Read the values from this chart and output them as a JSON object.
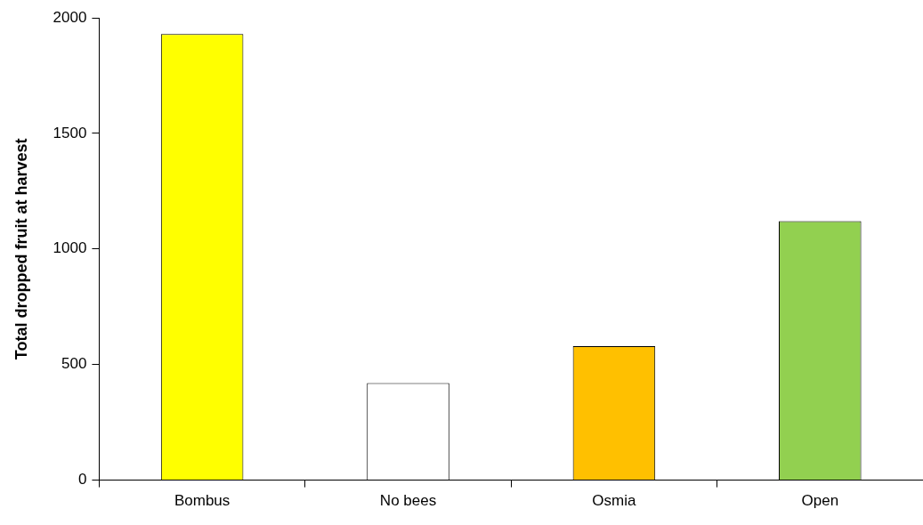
{
  "chart_data": {
    "type": "bar",
    "ylabel": "Total dropped fruit at harvest",
    "categories": [
      "Bombus",
      "No bees",
      "Osmia",
      "Open"
    ],
    "values": [
      1930,
      420,
      580,
      1120
    ],
    "colors": [
      "#ffff00",
      "#ffffff",
      "#ffc000",
      "#92d050"
    ],
    "ylim": [
      0,
      2000
    ],
    "yticks": [
      0,
      500,
      1000,
      1500,
      2000
    ],
    "grid": false,
    "legend": false
  }
}
